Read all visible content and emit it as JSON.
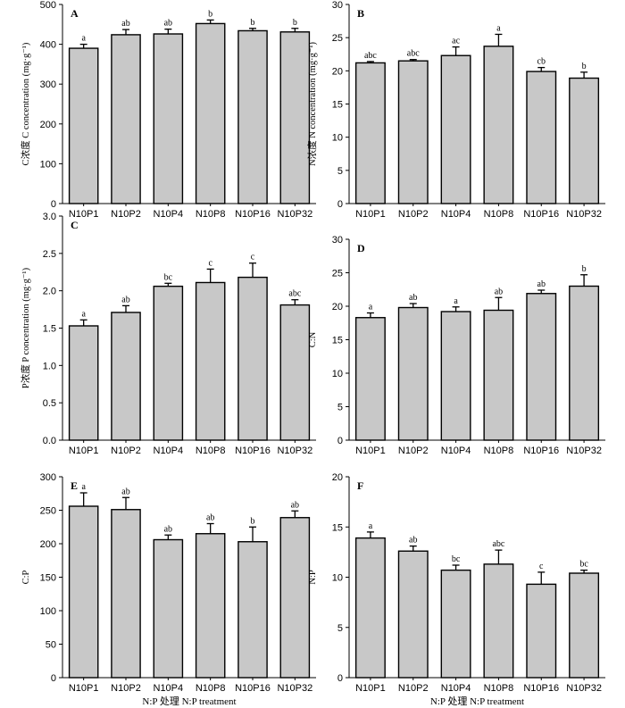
{
  "chart_data": [
    {
      "panel": "A",
      "type": "bar",
      "ylabel": "C浓度 C concentration (mg·g⁻¹)",
      "xlabel": "",
      "ylim": [
        0,
        500
      ],
      "yticks": [
        0,
        100,
        200,
        300,
        400,
        500
      ],
      "categories": [
        "N10P1",
        "N10P2",
        "N10P4",
        "N10P8",
        "N10P16",
        "N10P32"
      ],
      "values": [
        390,
        424,
        426,
        452,
        434,
        431
      ],
      "errors": [
        10,
        13,
        12,
        9,
        6,
        9
      ],
      "letters": [
        "a",
        "ab",
        "ab",
        "b",
        "b",
        "b"
      ]
    },
    {
      "panel": "B",
      "type": "bar",
      "ylabel": "N浓度 N concentration (mg·g⁻¹)",
      "xlabel": "",
      "ylim": [
        0,
        30
      ],
      "yticks": [
        0,
        5,
        10,
        15,
        20,
        25,
        30
      ],
      "categories": [
        "N10P1",
        "N10P2",
        "N10P4",
        "N10P8",
        "N10P16",
        "N10P32"
      ],
      "values": [
        21.2,
        21.5,
        22.3,
        23.7,
        19.9,
        18.9
      ],
      "errors": [
        0.2,
        0.2,
        1.3,
        1.8,
        0.6,
        0.9
      ],
      "letters": [
        "abc",
        "abc",
        "ac",
        "a",
        "cb",
        "b"
      ]
    },
    {
      "panel": "C",
      "type": "bar",
      "ylabel": "P浓度 P concentration (mg·g⁻¹)",
      "xlabel": "",
      "ylim": [
        0,
        3.0
      ],
      "yticks": [
        0,
        0.5,
        1.0,
        1.5,
        2.0,
        2.5,
        3.0
      ],
      "ytick_labels": [
        "0.0",
        "0.5",
        "1.0",
        "1.5",
        "2.0",
        "2.5",
        "3.0"
      ],
      "categories": [
        "N10P1",
        "N10P2",
        "N10P4",
        "N10P8",
        "N10P16",
        "N10P32"
      ],
      "values": [
        1.53,
        1.71,
        2.06,
        2.11,
        2.18,
        1.81
      ],
      "errors": [
        0.08,
        0.09,
        0.04,
        0.18,
        0.19,
        0.07
      ],
      "letters": [
        "a",
        "ab",
        "bc",
        "c",
        "c",
        "abc"
      ]
    },
    {
      "panel": "D",
      "type": "bar",
      "ylabel": "C:N",
      "xlabel": "",
      "ylim": [
        0,
        30
      ],
      "yticks": [
        0,
        5,
        10,
        15,
        20,
        25,
        30
      ],
      "categories": [
        "N10P1",
        "N10P2",
        "N10P4",
        "N10P8",
        "N10P16",
        "N10P32"
      ],
      "values": [
        18.3,
        19.8,
        19.2,
        19.4,
        21.9,
        23.0
      ],
      "errors": [
        0.7,
        0.6,
        0.7,
        1.9,
        0.5,
        1.7
      ],
      "letters": [
        "a",
        "ab",
        "a",
        "ab",
        "ab",
        "b"
      ]
    },
    {
      "panel": "E",
      "type": "bar",
      "ylabel": "C:P",
      "xlabel": "N:P 处理 N:P treatment",
      "ylim": [
        0,
        300
      ],
      "yticks": [
        0,
        50,
        100,
        150,
        200,
        250,
        300
      ],
      "categories": [
        "N10P1",
        "N10P2",
        "N10P4",
        "N10P8",
        "N10P16",
        "N10P32"
      ],
      "values": [
        256,
        251,
        206,
        215,
        203,
        239
      ],
      "errors": [
        20,
        18,
        7,
        15,
        22,
        10
      ],
      "letters": [
        "a",
        "ab",
        "ab",
        "ab",
        "b",
        "ab"
      ]
    },
    {
      "panel": "F",
      "type": "bar",
      "ylabel": "N:P",
      "xlabel": "N:P 处理 N:P treatment",
      "ylim": [
        0,
        20
      ],
      "yticks": [
        0,
        5,
        10,
        15,
        20
      ],
      "categories": [
        "N10P1",
        "N10P2",
        "N10P4",
        "N10P8",
        "N10P16",
        "N10P32"
      ],
      "values": [
        13.9,
        12.6,
        10.7,
        11.3,
        9.3,
        10.4
      ],
      "errors": [
        0.6,
        0.5,
        0.5,
        1.4,
        1.2,
        0.3
      ],
      "letters": [
        "a",
        "ab",
        "bc",
        "abc",
        "c",
        "bc"
      ]
    }
  ]
}
